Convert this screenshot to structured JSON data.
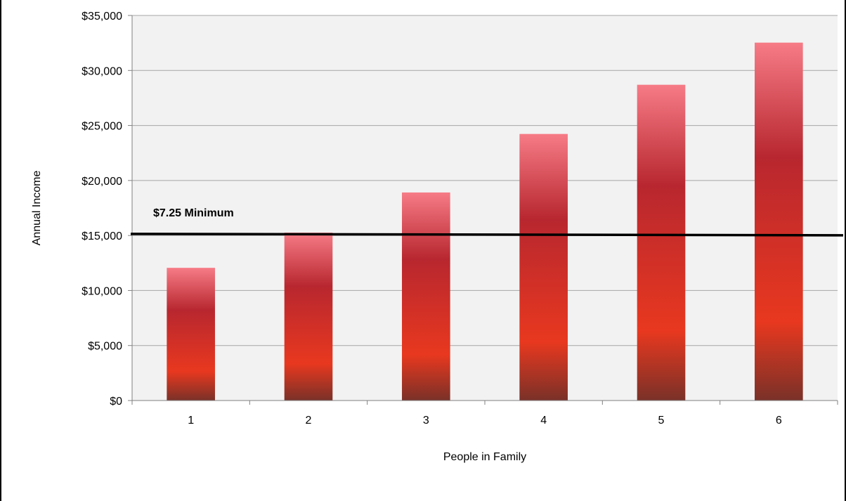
{
  "chart_data": {
    "type": "bar",
    "title": "",
    "xlabel": "People in Family",
    "ylabel": "Annual Income",
    "categories": [
      "1",
      "2",
      "3",
      "4",
      "5",
      "6"
    ],
    "values": [
      12060,
      15260,
      18910,
      24230,
      28700,
      32530
    ],
    "ylim": [
      0,
      35000
    ],
    "yticks": [
      0,
      5000,
      10000,
      15000,
      20000,
      25000,
      30000,
      35000
    ],
    "ytick_labels": [
      "$0",
      "$5,000",
      "$10,000",
      "$15,000",
      "$20,000",
      "$25,000",
      "$30,000",
      "$35,000"
    ],
    "grid": true,
    "legend": "none",
    "reference_line": {
      "label": "$7.25 Minimum",
      "value": 15080
    },
    "colors": {
      "plot_background": "#f2f2f2",
      "gridline": "#a6a6a6",
      "axis": "#808080",
      "bar_top": "#f67b86",
      "bar_mid": "#b8272f",
      "bar_low": "#e8381f",
      "bar_base": "#7a3128",
      "reference_line": "#000000"
    }
  }
}
